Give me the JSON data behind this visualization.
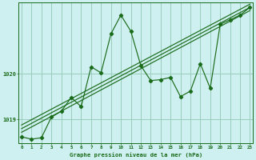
{
  "xlabel": "Graphe pression niveau de la mer (hPa)",
  "bg_color": "#cff0f0",
  "grid_color": "#99ccbb",
  "line_color": "#1a6b1a",
  "x_ticks": [
    0,
    1,
    2,
    3,
    4,
    5,
    6,
    7,
    8,
    9,
    10,
    11,
    12,
    13,
    14,
    15,
    16,
    17,
    18,
    19,
    20,
    21,
    22,
    23
  ],
  "xlim": [
    -0.3,
    23.3
  ],
  "ylim": [
    1018.48,
    1021.55
  ],
  "yticks": [
    1019,
    1020
  ],
  "main_series_x": [
    0,
    1,
    2,
    3,
    4,
    5,
    6,
    7,
    8,
    9,
    10,
    11,
    12,
    13,
    14,
    15,
    16,
    17,
    18,
    19,
    20,
    21,
    22,
    23
  ],
  "main_series_y": [
    1018.62,
    1018.57,
    1018.6,
    1019.05,
    1019.18,
    1019.48,
    1019.28,
    1020.15,
    1020.02,
    1020.87,
    1021.28,
    1020.93,
    1020.18,
    1019.85,
    1019.87,
    1019.92,
    1019.5,
    1019.62,
    1020.22,
    1019.68,
    1021.08,
    1021.18,
    1021.28,
    1021.45
  ],
  "trend_lines": [
    {
      "x0": 0,
      "y0": 1018.8,
      "x1": 23,
      "y1": 1021.45
    },
    {
      "x0": 0,
      "y0": 1018.72,
      "x1": 23,
      "y1": 1021.38
    },
    {
      "x0": 0,
      "y0": 1018.88,
      "x1": 23,
      "y1": 1021.52
    }
  ]
}
